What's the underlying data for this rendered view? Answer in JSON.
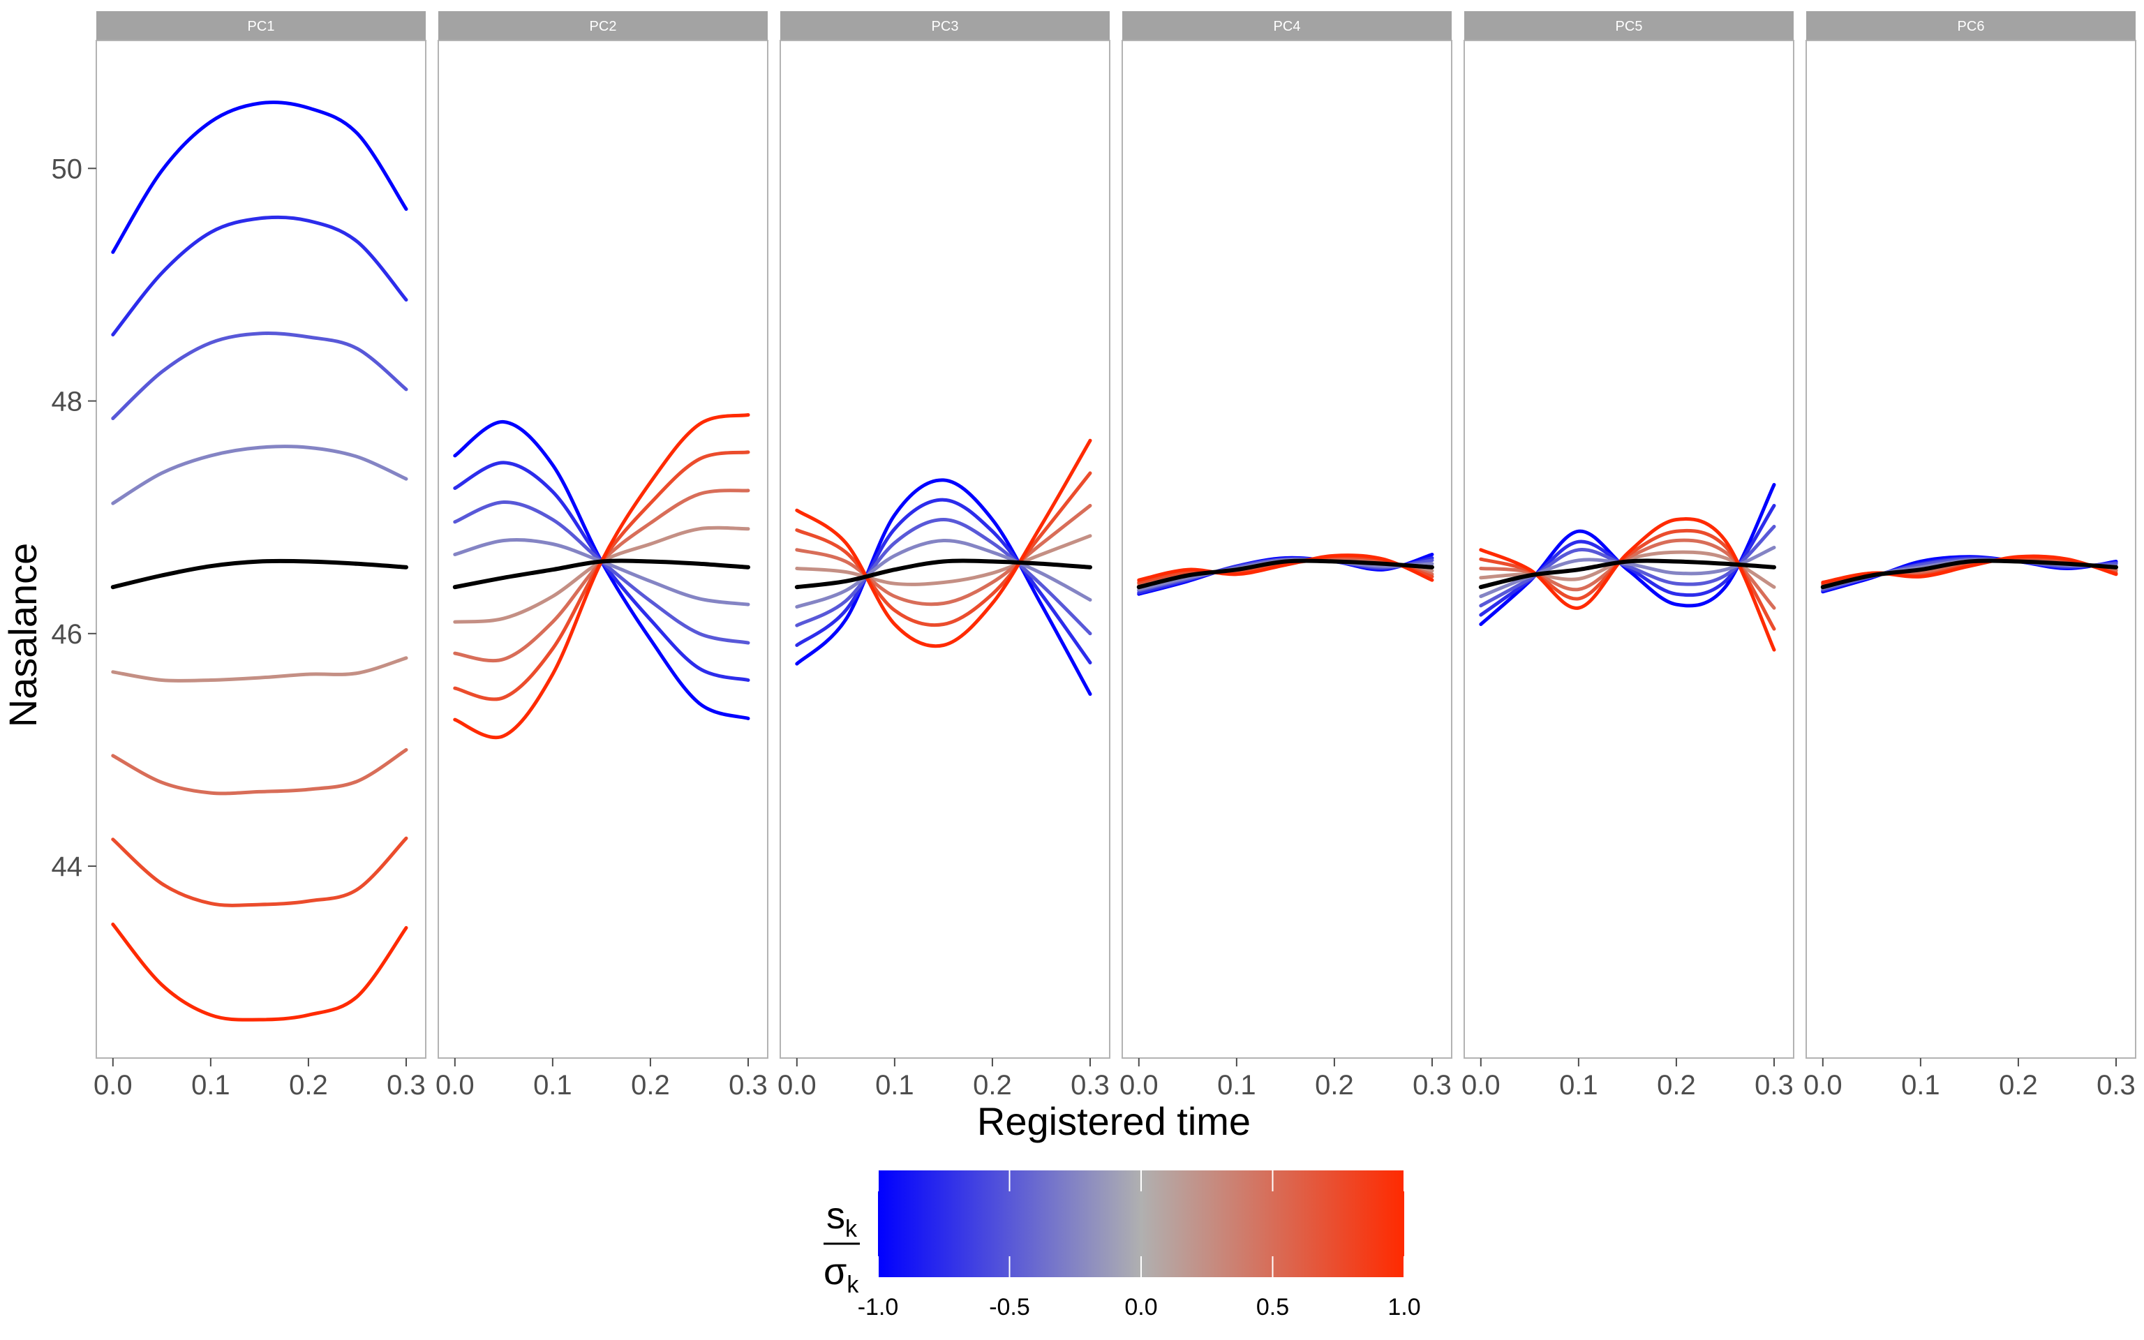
{
  "chart_data": {
    "type": "line",
    "xlabel": "Registered time",
    "ylabel": "Nasalance",
    "xlim": [
      -0.017,
      0.32
    ],
    "ylim": [
      42.35,
      51.1
    ],
    "x_ticks": [
      0.0,
      0.1,
      0.2,
      0.3
    ],
    "x_tick_labels": [
      "0.0",
      "0.1",
      "0.2",
      "0.3"
    ],
    "y_ticks": [
      44,
      46,
      48,
      50
    ],
    "y_tick_labels": [
      "44",
      "46",
      "48",
      "50"
    ],
    "grid": false,
    "legend": {
      "type": "colorbar",
      "placement": "bottom",
      "title_main": "s",
      "title_main_sub": "k",
      "title_denominator": "σ",
      "title_denominator_sub": "k",
      "min": -1.0,
      "max": 1.0,
      "ticks": [
        -1.0,
        -0.5,
        0.0,
        0.5,
        1.0
      ],
      "tick_labels": [
        "-1.0",
        "-0.5",
        "0.0",
        "0.5",
        "1.0"
      ],
      "colors": [
        "#0000ff",
        "#b0b0b0",
        "#ff2a00"
      ]
    },
    "mean_color": "#000000",
    "levels": [
      -1.0,
      -0.75,
      -0.5,
      -0.25,
      0.25,
      0.5,
      0.75,
      1.0
    ],
    "x": [
      0.0,
      0.05,
      0.1,
      0.15,
      0.2,
      0.25,
      0.3
    ],
    "panels": [
      {
        "name": "PC1",
        "series": [
          {
            "level": -1.0,
            "values": [
              49.28,
              49.98,
              50.4,
              50.56,
              50.52,
              50.3,
              49.65
            ]
          },
          {
            "level": -0.75,
            "values": [
              48.57,
              49.1,
              49.45,
              49.57,
              49.55,
              49.37,
              48.87
            ]
          },
          {
            "level": -0.5,
            "values": [
              47.85,
              48.25,
              48.5,
              48.58,
              48.55,
              48.45,
              48.1
            ]
          },
          {
            "level": -0.25,
            "values": [
              47.12,
              47.38,
              47.53,
              47.6,
              47.6,
              47.52,
              47.33
            ]
          },
          {
            "level": 0.0,
            "values": [
              46.4,
              46.5,
              46.58,
              46.62,
              46.62,
              46.6,
              46.57
            ]
          },
          {
            "level": 0.25,
            "values": [
              45.67,
              45.6,
              45.6,
              45.62,
              45.65,
              45.66,
              45.79
            ]
          },
          {
            "level": 0.5,
            "values": [
              44.95,
              44.72,
              44.63,
              44.64,
              44.66,
              44.73,
              45.0
            ]
          },
          {
            "level": 0.75,
            "values": [
              44.23,
              43.85,
              43.68,
              43.67,
              43.7,
              43.8,
              44.24
            ]
          },
          {
            "level": 1.0,
            "values": [
              43.5,
              42.98,
              42.72,
              42.68,
              42.72,
              42.88,
              43.47
            ]
          }
        ]
      },
      {
        "name": "PC2",
        "series": [
          {
            "level": -1.0,
            "values": [
              47.53,
              47.82,
              47.45,
              46.62,
              45.95,
              45.4,
              45.27
            ]
          },
          {
            "level": -0.75,
            "values": [
              47.25,
              47.47,
              47.22,
              46.62,
              46.12,
              45.7,
              45.6
            ]
          },
          {
            "level": -0.5,
            "values": [
              46.96,
              47.13,
              46.98,
              46.62,
              46.28,
              46.0,
              45.92
            ]
          },
          {
            "level": -0.25,
            "values": [
              46.68,
              46.8,
              46.77,
              46.62,
              46.45,
              46.3,
              46.25
            ]
          },
          {
            "level": 0.0,
            "values": [
              46.4,
              46.48,
              46.55,
              46.62,
              46.62,
              46.6,
              46.57
            ]
          },
          {
            "level": 0.25,
            "values": [
              46.1,
              46.13,
              46.32,
              46.62,
              46.77,
              46.9,
              46.9
            ]
          },
          {
            "level": 0.5,
            "values": [
              45.83,
              45.78,
              46.1,
              46.62,
              46.95,
              47.2,
              47.23
            ]
          },
          {
            "level": 0.75,
            "values": [
              45.53,
              45.45,
              45.87,
              46.62,
              47.12,
              47.5,
              47.56
            ]
          },
          {
            "level": 1.0,
            "values": [
              45.26,
              45.12,
              45.65,
              46.62,
              47.3,
              47.8,
              47.88
            ]
          }
        ]
      },
      {
        "name": "PC3",
        "series": [
          {
            "level": -1.0,
            "values": [
              45.74,
              46.12,
              47.02,
              47.32,
              46.98,
              46.25,
              45.48
            ]
          },
          {
            "level": -0.75,
            "values": [
              45.9,
              46.2,
              46.9,
              47.15,
              46.88,
              46.34,
              45.75
            ]
          },
          {
            "level": -0.5,
            "values": [
              46.07,
              46.28,
              46.78,
              46.98,
              46.78,
              46.42,
              46.0
            ]
          },
          {
            "level": -0.25,
            "values": [
              46.23,
              46.37,
              46.67,
              46.8,
              46.7,
              46.52,
              46.29
            ]
          },
          {
            "level": 0.0,
            "values": [
              46.4,
              46.45,
              46.55,
              46.62,
              46.62,
              46.6,
              46.57
            ]
          },
          {
            "level": 0.25,
            "values": [
              46.56,
              46.53,
              46.43,
              46.44,
              46.52,
              46.68,
              46.84
            ]
          },
          {
            "level": 0.5,
            "values": [
              46.72,
              46.62,
              46.32,
              46.26,
              46.44,
              46.77,
              47.1
            ]
          },
          {
            "level": 0.75,
            "values": [
              46.89,
              46.7,
              46.2,
              46.08,
              46.34,
              46.85,
              47.38
            ]
          },
          {
            "level": 1.0,
            "values": [
              47.06,
              46.78,
              46.08,
              45.9,
              46.26,
              46.93,
              47.66
            ]
          }
        ]
      },
      {
        "name": "PC4",
        "series": [
          {
            "level": -1.0,
            "values": [
              46.34,
              46.45,
              46.58,
              46.65,
              46.62,
              46.55,
              46.68
            ]
          },
          {
            "level": -0.75,
            "values": [
              46.35,
              46.46,
              46.58,
              46.64,
              46.62,
              46.56,
              46.65
            ]
          },
          {
            "level": -0.5,
            "values": [
              46.37,
              46.47,
              46.57,
              46.64,
              46.62,
              46.57,
              46.63
            ]
          },
          {
            "level": -0.25,
            "values": [
              46.38,
              46.48,
              46.56,
              46.63,
              46.62,
              46.58,
              46.6
            ]
          },
          {
            "level": 0.0,
            "values": [
              46.4,
              46.5,
              46.55,
              46.62,
              46.62,
              46.6,
              46.57
            ]
          },
          {
            "level": 0.25,
            "values": [
              46.41,
              46.51,
              46.54,
              46.61,
              46.63,
              46.61,
              46.54
            ]
          },
          {
            "level": 0.5,
            "values": [
              46.43,
              46.52,
              46.53,
              46.6,
              46.64,
              46.62,
              46.51
            ]
          },
          {
            "level": 0.75,
            "values": [
              46.44,
              46.53,
              46.52,
              46.6,
              46.66,
              46.63,
              46.49
            ]
          },
          {
            "level": 1.0,
            "values": [
              46.46,
              46.55,
              46.51,
              46.59,
              46.67,
              46.64,
              46.46
            ]
          }
        ]
      },
      {
        "name": "PC5",
        "series": [
          {
            "level": -1.0,
            "values": [
              46.08,
              46.45,
              46.88,
              46.55,
              46.25,
              46.4,
              47.28
            ]
          },
          {
            "level": -0.75,
            "values": [
              46.16,
              46.46,
              46.79,
              46.57,
              46.34,
              46.45,
              47.1
            ]
          },
          {
            "level": -0.5,
            "values": [
              46.24,
              46.47,
              46.72,
              46.58,
              46.43,
              46.5,
              46.92
            ]
          },
          {
            "level": -0.25,
            "values": [
              46.32,
              46.49,
              46.63,
              46.6,
              46.52,
              46.55,
              46.74
            ]
          },
          {
            "level": 0.0,
            "values": [
              46.4,
              46.5,
              46.55,
              46.62,
              46.62,
              46.6,
              46.57
            ]
          },
          {
            "level": 0.25,
            "values": [
              46.48,
              46.51,
              46.47,
              46.64,
              46.7,
              46.65,
              46.4
            ]
          },
          {
            "level": 0.5,
            "values": [
              46.56,
              46.53,
              46.38,
              46.65,
              46.8,
              46.7,
              46.22
            ]
          },
          {
            "level": 0.75,
            "values": [
              46.64,
              46.54,
              46.3,
              46.67,
              46.88,
              46.75,
              46.04
            ]
          },
          {
            "level": 1.0,
            "values": [
              46.72,
              46.55,
              46.22,
              46.69,
              46.98,
              46.8,
              45.86
            ]
          }
        ]
      },
      {
        "name": "PC6",
        "series": [
          {
            "level": -1.0,
            "values": [
              46.36,
              46.48,
              46.62,
              46.66,
              46.62,
              46.56,
              46.62
            ]
          },
          {
            "level": -0.75,
            "values": [
              46.37,
              46.49,
              46.6,
              46.65,
              46.62,
              46.57,
              46.61
            ]
          },
          {
            "level": -0.5,
            "values": [
              46.38,
              46.49,
              46.59,
              46.64,
              46.62,
              46.58,
              46.6
            ]
          },
          {
            "level": -0.25,
            "values": [
              46.39,
              46.5,
              46.57,
              46.63,
              46.62,
              46.59,
              46.58
            ]
          },
          {
            "level": 0.0,
            "values": [
              46.4,
              46.5,
              46.55,
              46.62,
              46.62,
              46.6,
              46.57
            ]
          },
          {
            "level": 0.25,
            "values": [
              46.41,
              46.5,
              46.53,
              46.61,
              46.63,
              46.61,
              46.55
            ]
          },
          {
            "level": 0.5,
            "values": [
              46.42,
              46.51,
              46.52,
              46.6,
              46.64,
              46.62,
              46.54
            ]
          },
          {
            "level": 0.75,
            "values": [
              46.43,
              46.52,
              46.5,
              46.59,
              46.65,
              46.63,
              46.52
            ]
          },
          {
            "level": 1.0,
            "values": [
              46.44,
              46.52,
              46.49,
              46.58,
              46.66,
              46.64,
              46.51
            ]
          }
        ]
      }
    ]
  }
}
